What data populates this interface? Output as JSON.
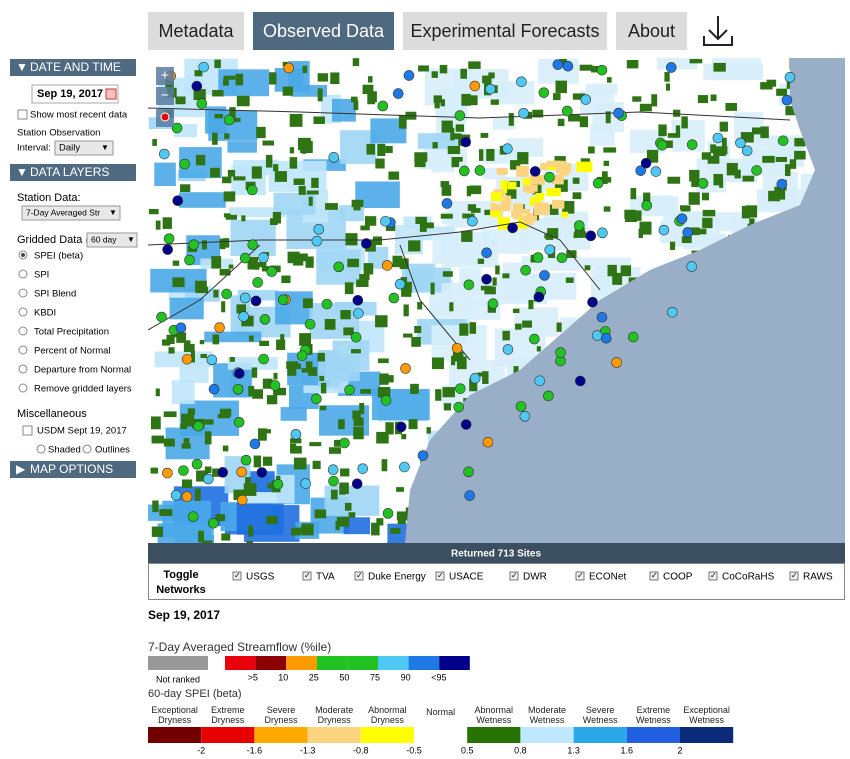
{
  "tabs": [
    "Metadata",
    "Observed Data",
    "Experimental Forecasts",
    "About"
  ],
  "sidebar": {
    "date_header": "DATE AND TIME",
    "date": "Sep 19, 2017",
    "recent": "Show most recent data",
    "interval_label_1": "Station Observation",
    "interval_label_2": "Interval:",
    "interval": "Daily",
    "layers_header": "DATA LAYERS",
    "station_label": "Station Data:",
    "station_select": "7-Day Averaged Str",
    "gridded_label": "Gridded Data (",
    "gridded_select": "60 day",
    "gridded_options": [
      "SPEI (beta)",
      "SPI",
      "SPI Blend",
      "KBDI",
      "Total Precipitation",
      "Percent of Normal",
      "Departure from Normal",
      "Remove gridded layers"
    ],
    "misc_label": "Miscellaneous",
    "usdm": "USDM Sept 19, 2017",
    "shaded": "Shaded",
    "outlines": "Outlines",
    "map_options_header": "MAP OPTIONS"
  },
  "map": {
    "zoom_in": "+",
    "zoom_out": "−",
    "returned": "Returned 713 Sites",
    "toggle_1": "Toggle",
    "toggle_2": "Networks",
    "networks": [
      "USGS",
      "TVA",
      "Duke Energy",
      "USACE",
      "DWR",
      "ECONet",
      "COOP",
      "CoCoRaHS",
      "RAWS"
    ]
  },
  "legend": {
    "date": "Sep 19, 2017",
    "streamflow": {
      "title": "7-Day Averaged Streamflow (%ile)",
      "not_ranked": "Not ranked",
      "colors": [
        "#e8000b",
        "#8b0000",
        "#ff9a00",
        "#22c222",
        "#22c222",
        "#4fc8f4",
        "#1e78e6",
        "#00008b"
      ],
      "labels": [
        ">5",
        "10",
        "25",
        "50",
        "75",
        "90",
        "<95"
      ]
    },
    "spei": {
      "title": "60-day SPEI (beta)",
      "categories": [
        "Exceptional Dryness",
        "Extreme Dryness",
        "Severe Dryness",
        "Moderate Dryness",
        "Abnormal Dryness",
        "Normal",
        "Abnormal Wetness",
        "Moderate Wetness",
        "Severe Wetness",
        "Extreme Wetness",
        "Exceptional Wetness"
      ],
      "colors": [
        "#730000",
        "#e60000",
        "#ffaa00",
        "#fcd37f",
        "#ffff00",
        "#ffffff",
        "#267300",
        "#bee8ff",
        "#2aa8e8",
        "#1f5fe0",
        "#0a2a7a"
      ],
      "ticks": [
        "-2",
        "-1.6",
        "-1.3",
        "-0.8",
        "-0.5",
        "0.5",
        "0.8",
        "1.3",
        "1.6",
        "2"
      ]
    }
  }
}
